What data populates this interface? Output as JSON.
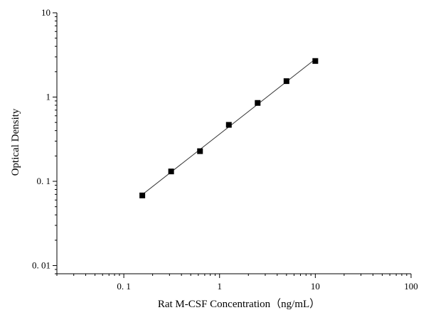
{
  "chart_data": {
    "type": "scatter",
    "title": "",
    "xlabel": "Rat M-CSF Concentration（ng/mL）",
    "ylabel": "Optical Density",
    "xscale": "log",
    "yscale": "log",
    "xlim": [
      0.02,
      100
    ],
    "ylim": [
      0.008,
      10
    ],
    "x_ticks": [
      {
        "value": 0.1,
        "label": "0. 1"
      },
      {
        "value": 1,
        "label": "1"
      },
      {
        "value": 10,
        "label": "10"
      },
      {
        "value": 100,
        "label": "100"
      }
    ],
    "y_ticks": [
      {
        "value": 0.01,
        "label": "0. 01"
      },
      {
        "value": 0.1,
        "label": "0. 1"
      },
      {
        "value": 1,
        "label": "1"
      },
      {
        "value": 10,
        "label": "10"
      }
    ],
    "grid": false,
    "legend": "none",
    "series": [
      {
        "marker": "square",
        "color": "#000000",
        "fit_line": true,
        "x": [
          0.156,
          0.312,
          0.625,
          1.25,
          2.5,
          5,
          10
        ],
        "y": [
          0.068,
          0.131,
          0.228,
          0.468,
          0.852,
          1.545,
          2.68
        ]
      }
    ]
  }
}
